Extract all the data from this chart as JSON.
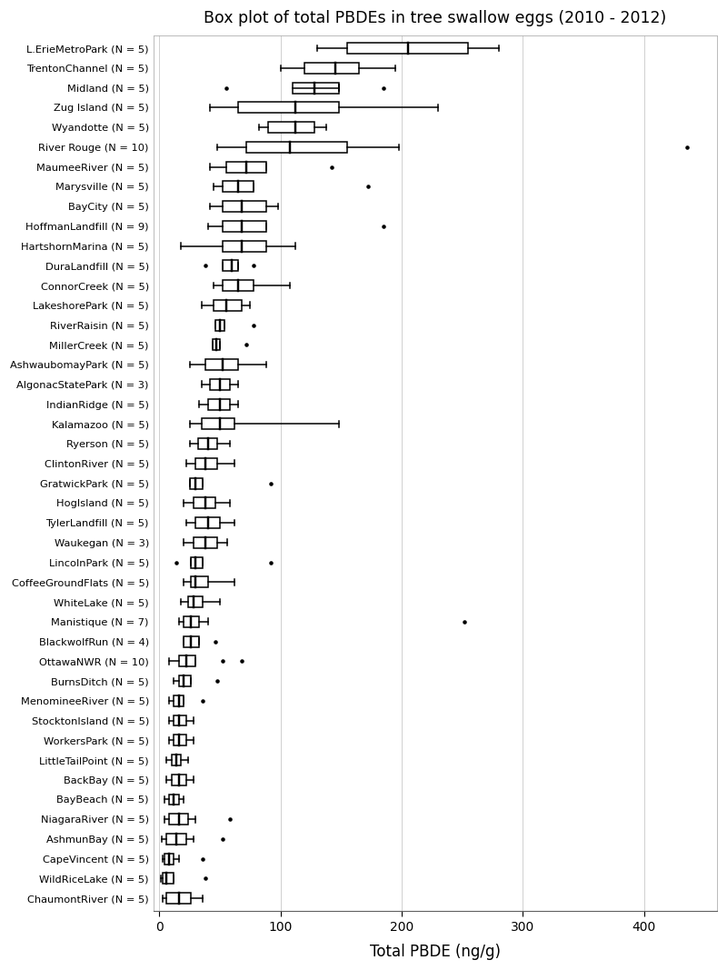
{
  "title": "Box plot of total PBDEs in tree swallow eggs (2010 - 2012)",
  "xlabel": "Total PBDE (ng/g)",
  "xlim": [
    -5,
    460
  ],
  "xticks": [
    0,
    100,
    200,
    300,
    400
  ],
  "background_color": "#ffffff",
  "grid_color": "#d0d0d0",
  "sites": [
    "L.ErieMetroPark (N = 5)",
    "TrentonChannel (N = 5)",
    "Midland (N = 5)",
    "Zug Island (N = 5)",
    "Wyandotte (N = 5)",
    "River Rouge (N = 10)",
    "MaumeeRiver (N = 5)",
    "Marysville (N = 5)",
    "BayCity (N = 5)",
    "HoffmanLandfill (N = 9)",
    "HartshornMarina (N = 5)",
    "DuraLandfill (N = 5)",
    "ConnorCreek (N = 5)",
    "LakeshorePark (N = 5)",
    "RiverRaisin (N = 5)",
    "MillerCreek (N = 5)",
    "AshwaubomayPark (N = 5)",
    "AlgonacStatePark (N = 3)",
    "IndianRidge (N = 5)",
    "Kalamazoo (N = 5)",
    "Ryerson (N = 5)",
    "ClintonRiver (N = 5)",
    "GratwickPark (N = 5)",
    "HogIsland (N = 5)",
    "TylerLandfill (N = 5)",
    "Waukegan (N = 3)",
    "LincolnPark (N = 5)",
    "CoffeeGroundFlats (N = 5)",
    "WhiteLake (N = 5)",
    "Manistique (N = 7)",
    "BlackwolfRun (N = 4)",
    "OttawaNWR (N = 10)",
    "BurnsDitch (N = 5)",
    "MenomineeRiver (N = 5)",
    "StocktonIsland (N = 5)",
    "WorkersPark (N = 5)",
    "LittleTailPoint (N = 5)",
    "BackBay (N = 5)",
    "BayBeach (N = 5)",
    "NiagaraRiver (N = 5)",
    "AshmunBay (N = 5)",
    "CapeVincent (N = 5)",
    "WildRiceLake (N = 5)",
    "ChaumontRiver (N = 5)"
  ],
  "boxes": [
    {
      "q1": 155,
      "median": 205,
      "q3": 255,
      "whisker_low": 130,
      "whisker_high": 280,
      "fliers": []
    },
    {
      "q1": 120,
      "median": 145,
      "q3": 165,
      "whisker_low": 100,
      "whisker_high": 195,
      "fliers": []
    },
    {
      "q1": 110,
      "median": 128,
      "q3": 148,
      "whisker_low": 148,
      "whisker_high": 148,
      "fliers": [
        55,
        185
      ]
    },
    {
      "q1": 65,
      "median": 112,
      "q3": 148,
      "whisker_low": 42,
      "whisker_high": 230,
      "fliers": []
    },
    {
      "q1": 90,
      "median": 112,
      "q3": 128,
      "whisker_low": 82,
      "whisker_high": 138,
      "fliers": []
    },
    {
      "q1": 72,
      "median": 108,
      "q3": 155,
      "whisker_low": 48,
      "whisker_high": 198,
      "fliers": [
        435
      ]
    },
    {
      "q1": 55,
      "median": 72,
      "q3": 88,
      "whisker_low": 42,
      "whisker_high": 88,
      "fliers": [
        142
      ]
    },
    {
      "q1": 52,
      "median": 65,
      "q3": 78,
      "whisker_low": 45,
      "whisker_high": 78,
      "fliers": [
        172
      ]
    },
    {
      "q1": 52,
      "median": 68,
      "q3": 88,
      "whisker_low": 42,
      "whisker_high": 98,
      "fliers": []
    },
    {
      "q1": 52,
      "median": 68,
      "q3": 88,
      "whisker_low": 40,
      "whisker_high": 88,
      "fliers": [
        185
      ]
    },
    {
      "q1": 52,
      "median": 68,
      "q3": 88,
      "whisker_low": 18,
      "whisker_high": 112,
      "fliers": []
    },
    {
      "q1": 52,
      "median": 60,
      "q3": 65,
      "whisker_low": 52,
      "whisker_high": 65,
      "fliers": [
        38,
        78
      ]
    },
    {
      "q1": 52,
      "median": 65,
      "q3": 78,
      "whisker_low": 45,
      "whisker_high": 108,
      "fliers": []
    },
    {
      "q1": 45,
      "median": 55,
      "q3": 68,
      "whisker_low": 35,
      "whisker_high": 75,
      "fliers": []
    },
    {
      "q1": 46,
      "median": 50,
      "q3": 54,
      "whisker_low": 46,
      "whisker_high": 54,
      "fliers": [
        78
      ]
    },
    {
      "q1": 44,
      "median": 47,
      "q3": 50,
      "whisker_low": 44,
      "whisker_high": 50,
      "fliers": [
        72
      ]
    },
    {
      "q1": 38,
      "median": 52,
      "q3": 65,
      "whisker_low": 25,
      "whisker_high": 88,
      "fliers": []
    },
    {
      "q1": 42,
      "median": 50,
      "q3": 58,
      "whisker_low": 35,
      "whisker_high": 65,
      "fliers": []
    },
    {
      "q1": 40,
      "median": 50,
      "q3": 58,
      "whisker_low": 33,
      "whisker_high": 65,
      "fliers": []
    },
    {
      "q1": 35,
      "median": 50,
      "q3": 62,
      "whisker_low": 25,
      "whisker_high": 148,
      "fliers": []
    },
    {
      "q1": 32,
      "median": 40,
      "q3": 48,
      "whisker_low": 25,
      "whisker_high": 58,
      "fliers": []
    },
    {
      "q1": 30,
      "median": 38,
      "q3": 48,
      "whisker_low": 22,
      "whisker_high": 62,
      "fliers": []
    },
    {
      "q1": 25,
      "median": 30,
      "q3": 36,
      "whisker_low": 25,
      "whisker_high": 36,
      "fliers": [
        92
      ]
    },
    {
      "q1": 28,
      "median": 38,
      "q3": 46,
      "whisker_low": 20,
      "whisker_high": 58,
      "fliers": []
    },
    {
      "q1": 30,
      "median": 40,
      "q3": 50,
      "whisker_low": 22,
      "whisker_high": 62,
      "fliers": []
    },
    {
      "q1": 28,
      "median": 38,
      "q3": 48,
      "whisker_low": 20,
      "whisker_high": 56,
      "fliers": []
    },
    {
      "q1": 26,
      "median": 30,
      "q3": 36,
      "whisker_low": 26,
      "whisker_high": 36,
      "fliers": [
        14,
        92
      ]
    },
    {
      "q1": 26,
      "median": 30,
      "q3": 40,
      "whisker_low": 20,
      "whisker_high": 62,
      "fliers": []
    },
    {
      "q1": 24,
      "median": 28,
      "q3": 36,
      "whisker_low": 18,
      "whisker_high": 50,
      "fliers": []
    },
    {
      "q1": 20,
      "median": 26,
      "q3": 33,
      "whisker_low": 16,
      "whisker_high": 40,
      "fliers": [
        252
      ]
    },
    {
      "q1": 20,
      "median": 26,
      "q3": 33,
      "whisker_low": 20,
      "whisker_high": 33,
      "fliers": [
        46
      ]
    },
    {
      "q1": 16,
      "median": 22,
      "q3": 30,
      "whisker_low": 8,
      "whisker_high": 30,
      "fliers": [
        52,
        68
      ]
    },
    {
      "q1": 16,
      "median": 20,
      "q3": 26,
      "whisker_low": 12,
      "whisker_high": 26,
      "fliers": [
        48
      ]
    },
    {
      "q1": 12,
      "median": 16,
      "q3": 20,
      "whisker_low": 8,
      "whisker_high": 20,
      "fliers": [
        36
      ]
    },
    {
      "q1": 12,
      "median": 16,
      "q3": 22,
      "whisker_low": 8,
      "whisker_high": 28,
      "fliers": []
    },
    {
      "q1": 12,
      "median": 16,
      "q3": 22,
      "whisker_low": 8,
      "whisker_high": 28,
      "fliers": []
    },
    {
      "q1": 10,
      "median": 14,
      "q3": 18,
      "whisker_low": 6,
      "whisker_high": 24,
      "fliers": []
    },
    {
      "q1": 10,
      "median": 16,
      "q3": 22,
      "whisker_low": 6,
      "whisker_high": 28,
      "fliers": []
    },
    {
      "q1": 8,
      "median": 12,
      "q3": 16,
      "whisker_low": 4,
      "whisker_high": 20,
      "fliers": []
    },
    {
      "q1": 8,
      "median": 16,
      "q3": 24,
      "whisker_low": 4,
      "whisker_high": 30,
      "fliers": [
        58
      ]
    },
    {
      "q1": 6,
      "median": 14,
      "q3": 22,
      "whisker_low": 2,
      "whisker_high": 28,
      "fliers": [
        52
      ]
    },
    {
      "q1": 4,
      "median": 8,
      "q3": 12,
      "whisker_low": 3,
      "whisker_high": 16,
      "fliers": [
        36
      ]
    },
    {
      "q1": 3,
      "median": 6,
      "q3": 12,
      "whisker_low": 1,
      "whisker_high": 12,
      "fliers": [
        38
      ]
    },
    {
      "q1": 6,
      "median": 16,
      "q3": 26,
      "whisker_low": 3,
      "whisker_high": 36,
      "fliers": []
    }
  ]
}
